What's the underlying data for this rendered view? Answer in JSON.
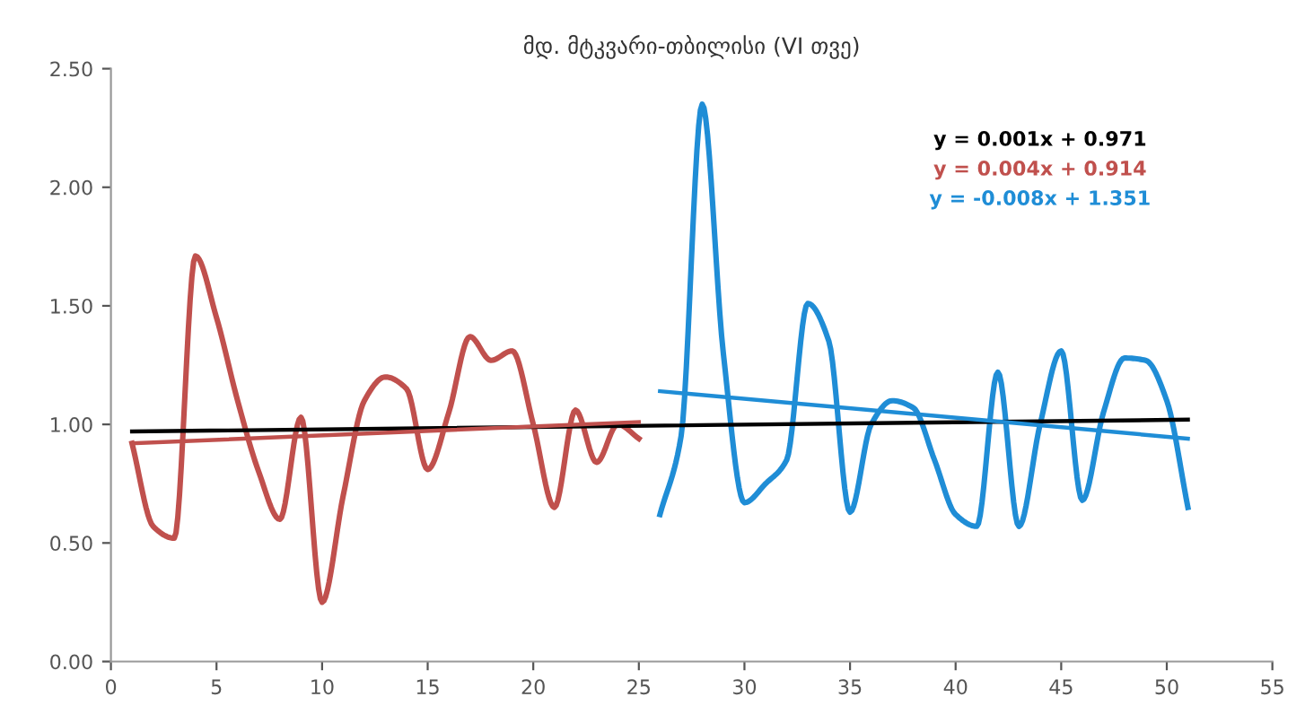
{
  "chart_data": {
    "type": "line",
    "title": "მდ. მტკვარი-თბილისი (VI თვე)",
    "series": [
      {
        "color": "#c0504d",
        "x": [
          1,
          2,
          3,
          4,
          5,
          6,
          7,
          8,
          9,
          10,
          11,
          12,
          13,
          14,
          15,
          16,
          17,
          18,
          19,
          20,
          21,
          22,
          23,
          24,
          25
        ],
        "values": [
          0.92,
          0.57,
          0.52,
          1.71,
          1.45,
          1.1,
          0.8,
          0.6,
          1.03,
          0.25,
          0.7,
          1.1,
          1.2,
          1.15,
          0.81,
          1.05,
          1.37,
          1.27,
          1.31,
          1.0,
          0.65,
          1.06,
          0.84,
          1.0,
          0.94
        ]
      },
      {
        "color": "#1f8dd6",
        "x": [
          26,
          27,
          28,
          29,
          30,
          31,
          32,
          33,
          34,
          35,
          36,
          37,
          38,
          39,
          40,
          41,
          42,
          43,
          44,
          45,
          46,
          47,
          48,
          49,
          50,
          51
        ],
        "values": [
          0.62,
          0.95,
          2.35,
          1.3,
          0.67,
          0.75,
          0.85,
          1.51,
          1.35,
          0.63,
          1.0,
          1.1,
          1.07,
          0.85,
          0.62,
          0.57,
          1.22,
          0.57,
          1.0,
          1.31,
          0.68,
          1.05,
          1.28,
          1.27,
          1.1,
          0.65
        ]
      },
      {
        "color": "#000000",
        "x": [
          1,
          51
        ],
        "values": [
          0.97,
          1.02
        ]
      },
      {
        "color": "#c0504d",
        "x": [
          1,
          25
        ],
        "values": [
          0.92,
          1.01
        ]
      },
      {
        "color": "#1f8dd6",
        "x": [
          26,
          51
        ],
        "values": [
          1.14,
          0.94
        ]
      }
    ],
    "annotations": [
      "y = 0.001x + 0.971",
      "y = 0.004x + 0.914",
      "y = -0.008x + 1.351"
    ],
    "xlim": [
      0,
      55
    ],
    "xticks": [
      0,
      5,
      10,
      15,
      20,
      25,
      30,
      35,
      40,
      45,
      50,
      55
    ],
    "ylim": [
      0,
      2.5
    ],
    "yticks": [
      {
        "value": 0,
        "label": "0.00"
      },
      {
        "value": 0.5,
        "label": "0.50"
      },
      {
        "value": 1,
        "label": "1.00"
      },
      {
        "value": 1.5,
        "label": "1.50"
      },
      {
        "value": 2,
        "label": "2.00"
      },
      {
        "value": 2.5,
        "label": "2.50"
      }
    ],
    "grid": false,
    "legend": false,
    "marker": "none",
    "line_style": "solid"
  }
}
